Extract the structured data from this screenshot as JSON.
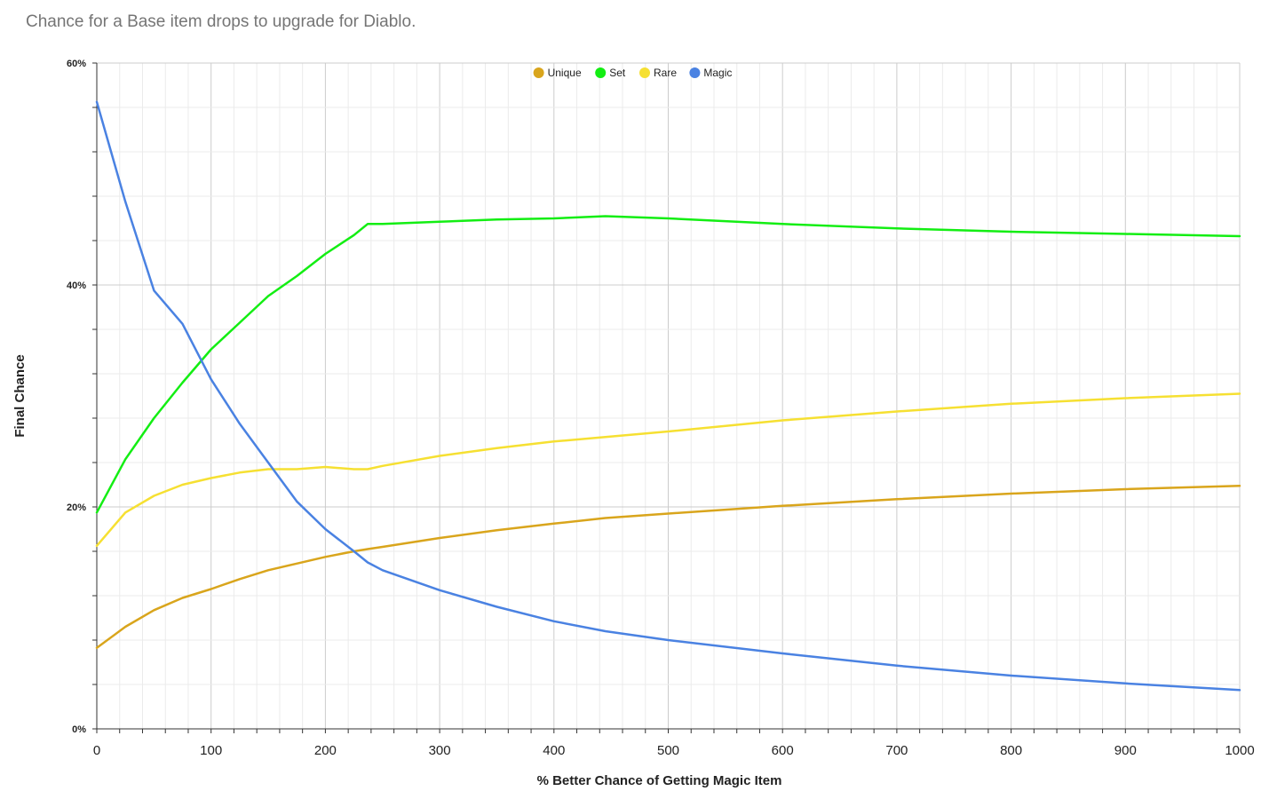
{
  "chart_data": {
    "type": "line",
    "title": "Chance for a Base item drops to upgrade for Diablo.",
    "xlabel": "% Better Chance of Getting Magic Item",
    "ylabel": "Final Chance",
    "xlim": [
      0,
      1000
    ],
    "ylim": [
      0,
      60
    ],
    "x_ticks": [
      "0",
      "100",
      "200",
      "300",
      "400",
      "500",
      "600",
      "700",
      "800",
      "900",
      "1000"
    ],
    "y_ticks": [
      "0%",
      "20%",
      "40%",
      "60%"
    ],
    "grid": true,
    "legend_position": "top-center",
    "x": [
      0,
      25,
      50,
      75,
      100,
      125,
      150,
      175,
      200,
      225,
      237,
      250,
      300,
      350,
      400,
      445,
      500,
      600,
      700,
      800,
      900,
      1000
    ],
    "series": [
      {
        "name": "Unique",
        "color": "#d9a51c",
        "values": [
          7.3,
          9.2,
          10.7,
          11.8,
          12.6,
          13.5,
          14.3,
          14.9,
          15.5,
          16.0,
          16.2,
          16.4,
          17.2,
          17.9,
          18.5,
          19.0,
          19.4,
          20.1,
          20.7,
          21.2,
          21.6,
          21.9
        ]
      },
      {
        "name": "Set",
        "color": "#13ee13",
        "values": [
          19.5,
          24.3,
          28.0,
          31.2,
          34.2,
          36.6,
          39.0,
          40.8,
          42.8,
          44.5,
          45.5,
          45.5,
          45.7,
          45.9,
          46.0,
          46.2,
          46.0,
          45.5,
          45.1,
          44.8,
          44.6,
          44.4
        ]
      },
      {
        "name": "Rare",
        "color": "#f6e032",
        "values": [
          16.5,
          19.5,
          21.0,
          22.0,
          22.6,
          23.1,
          23.4,
          23.4,
          23.6,
          23.4,
          23.4,
          23.7,
          24.6,
          25.3,
          25.9,
          26.3,
          26.8,
          27.8,
          28.6,
          29.3,
          29.8,
          30.2
        ]
      },
      {
        "name": "Magic",
        "color": "#4a82e2",
        "values": [
          56.5,
          47.5,
          39.5,
          36.5,
          31.5,
          27.5,
          24.0,
          20.5,
          18.0,
          16.0,
          15.0,
          14.3,
          12.5,
          11.0,
          9.7,
          8.8,
          8.0,
          6.8,
          5.7,
          4.8,
          4.1,
          3.5
        ]
      }
    ]
  }
}
